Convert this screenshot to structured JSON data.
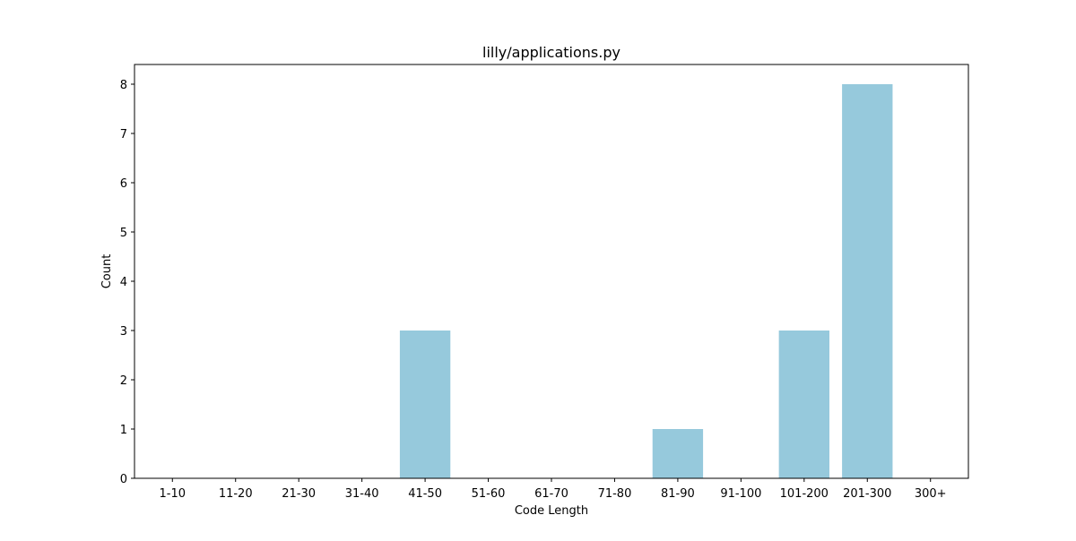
{
  "chart_data": {
    "type": "bar",
    "title": "lilly/applications.py",
    "xlabel": "Code Length",
    "ylabel": "Count",
    "categories": [
      "1-10",
      "11-20",
      "21-30",
      "31-40",
      "41-50",
      "51-60",
      "61-70",
      "71-80",
      "81-90",
      "91-100",
      "101-200",
      "201-300",
      "300+"
    ],
    "values": [
      0,
      0,
      0,
      0,
      3,
      0,
      0,
      0,
      1,
      0,
      3,
      8,
      0
    ],
    "ylim": [
      0,
      8.4
    ],
    "yticks": [
      0,
      1,
      2,
      3,
      4,
      5,
      6,
      7,
      8
    ],
    "grid": false,
    "bar_color": "#96c9dc"
  }
}
